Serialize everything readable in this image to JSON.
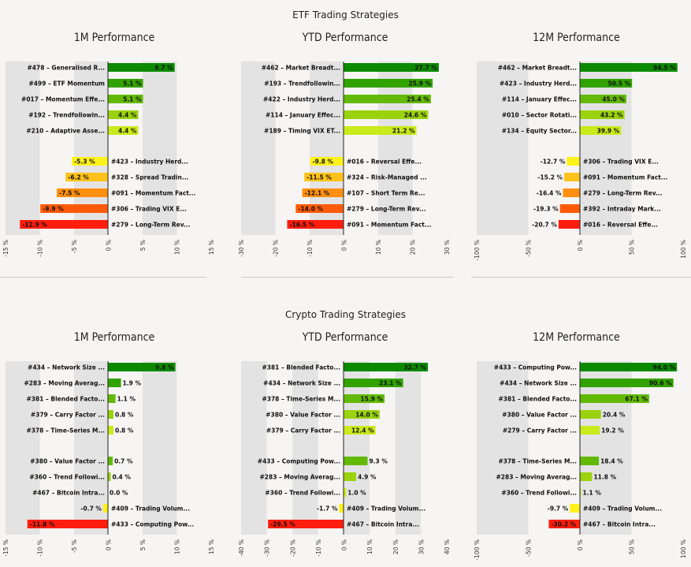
{
  "sections": [
    {
      "title": "ETF Trading Strategies"
    },
    {
      "title": "Crypto Trading Strategies"
    }
  ],
  "colors": {
    "pos": [
      "#0b8a00",
      "#31a200",
      "#62ba06",
      "#9ad30d",
      "#c9ea1b"
    ],
    "neg": [
      "#fff21c",
      "#ffc21a",
      "#ff8f0e",
      "#ff5a08",
      "#ff1d0e"
    ],
    "stripe_dark": "#e3e3e3",
    "stripe_light": "#f6f5f3",
    "axis": "#222222"
  },
  "chart_data": [
    {
      "type": "bar",
      "orientation": "horizontal",
      "section": "ETF Trading Strategies",
      "title": "1M Performance",
      "xlim": [
        -15,
        15
      ],
      "xticks": [
        "-15 %",
        "-10 %",
        "-5 %",
        "0 %",
        "5 %",
        "10 %",
        "15 %"
      ],
      "top": [
        {
          "label": "#478 – Generalised R...",
          "value": 9.7,
          "value_label": "9.7 %"
        },
        {
          "label": "#499 – ETF Momentum",
          "value": 5.1,
          "value_label": "5.1 %"
        },
        {
          "label": "#017 – Momentum Effe...",
          "value": 5.1,
          "value_label": "5.1 %"
        },
        {
          "label": "#192 – Trendfollowin...",
          "value": 4.4,
          "value_label": "4.4 %"
        },
        {
          "label": "#210 – Adaptive Asse...",
          "value": 4.4,
          "value_label": "4.4 %"
        }
      ],
      "bottom": [
        {
          "label": "#423 – Industry Herd...",
          "value": -5.3,
          "value_label": "-5.3 %"
        },
        {
          "label": "#328 – Spread Tradin...",
          "value": -6.2,
          "value_label": "-6.2 %"
        },
        {
          "label": "#091 – Momentum Fact...",
          "value": -7.5,
          "value_label": "-7.5 %"
        },
        {
          "label": "#306 – Trading VIX E...",
          "value": -9.9,
          "value_label": "-9.9 %"
        },
        {
          "label": "#279 – Long-Term Rev...",
          "value": -12.9,
          "value_label": "-12.9 %"
        }
      ]
    },
    {
      "type": "bar",
      "orientation": "horizontal",
      "section": "ETF Trading Strategies",
      "title": "YTD Performance",
      "xlim": [
        -30,
        30
      ],
      "xticks": [
        "-30 %",
        "-20 %",
        "-10 %",
        "0 %",
        "10 %",
        "20 %",
        "30 %"
      ],
      "top": [
        {
          "label": "#462 – Market Breadt...",
          "value": 27.7,
          "value_label": "27.7 %"
        },
        {
          "label": "#193 – Trendfollowin...",
          "value": 25.9,
          "value_label": "25.9 %"
        },
        {
          "label": "#422 – Industry Herd...",
          "value": 25.4,
          "value_label": "25.4 %"
        },
        {
          "label": "#114 – January Effec...",
          "value": 24.6,
          "value_label": "24.6 %"
        },
        {
          "label": "#189 – Timing VIX ET...",
          "value": 21.2,
          "value_label": "21.2 %"
        }
      ],
      "bottom": [
        {
          "label": "#016 – Reversal Effe...",
          "value": -9.8,
          "value_label": "-9.8 %"
        },
        {
          "label": "#324 – Risk-Managed ...",
          "value": -11.5,
          "value_label": "-11.5 %"
        },
        {
          "label": "#107 – Short Term Re...",
          "value": -12.1,
          "value_label": "-12.1 %"
        },
        {
          "label": "#279 – Long-Term Rev...",
          "value": -14.0,
          "value_label": "-14.0 %"
        },
        {
          "label": "#091 – Momentum Fact...",
          "value": -16.5,
          "value_label": "-16.5 %"
        }
      ]
    },
    {
      "type": "bar",
      "orientation": "horizontal",
      "section": "ETF Trading Strategies",
      "title": "12M Performance",
      "xlim": [
        -100,
        100
      ],
      "xticks": [
        "-100 %",
        "-50 %",
        "0 %",
        "50 %",
        "100 %"
      ],
      "top": [
        {
          "label": "#462 – Market Breadt...",
          "value": 94.5,
          "value_label": "94.5 %"
        },
        {
          "label": "#423 – Industry Herd...",
          "value": 50.5,
          "value_label": "50.5 %"
        },
        {
          "label": "#114 – January Effec...",
          "value": 45.0,
          "value_label": "45.0 %"
        },
        {
          "label": "#010 – Sector Rotati...",
          "value": 43.2,
          "value_label": "43.2 %"
        },
        {
          "label": "#134 – Equity Sector...",
          "value": 39.9,
          "value_label": "39.9 %"
        }
      ],
      "bottom": [
        {
          "label": "#306 – Trading VIX E...",
          "value": -12.7,
          "value_label": "-12.7 %"
        },
        {
          "label": "#091 – Momentum Fact...",
          "value": -15.2,
          "value_label": "-15.2 %"
        },
        {
          "label": "#279 – Long-Term Rev...",
          "value": -16.4,
          "value_label": "-16.4 %"
        },
        {
          "label": "#392 – Intraday Mark...",
          "value": -19.3,
          "value_label": "-19.3 %"
        },
        {
          "label": "#016 – Reversal Effe...",
          "value": -20.7,
          "value_label": "-20.7 %"
        }
      ]
    },
    {
      "type": "bar",
      "orientation": "horizontal",
      "section": "Crypto Trading Strategies",
      "title": "1M Performance",
      "xlim": [
        -15,
        15
      ],
      "xticks": [
        "-15 %",
        "-10 %",
        "-5 %",
        "0 %",
        "5 %",
        "10 %",
        "15 %"
      ],
      "top": [
        {
          "label": "#434 – Network Size ...",
          "value": 9.8,
          "value_label": "9.8 %"
        },
        {
          "label": "#283 – Moving Averag...",
          "value": 1.9,
          "value_label": "1.9 %"
        },
        {
          "label": "#381 – Blended Facto...",
          "value": 1.1,
          "value_label": "1.1 %"
        },
        {
          "label": "#379 – Carry Factor ...",
          "value": 0.8,
          "value_label": "0.8 %"
        },
        {
          "label": "#378 – Time-Series M...",
          "value": 0.8,
          "value_label": "0.8 %"
        }
      ],
      "bottom": [
        {
          "label": "#380 – Value Factor ...",
          "value": 0.7,
          "value_label": "0.7 %"
        },
        {
          "label": "#360 – Trend Followi...",
          "value": 0.4,
          "value_label": "0.4 %"
        },
        {
          "label": "#467 – Bitcoin Intra...",
          "value": 0.0,
          "value_label": "0.0 %"
        },
        {
          "label": "#409 – Trading Volum...",
          "value": -0.7,
          "value_label": "-0.7 %"
        },
        {
          "label": "#433 – Computing Pow...",
          "value": -11.8,
          "value_label": "-11.8 %"
        }
      ]
    },
    {
      "type": "bar",
      "orientation": "horizontal",
      "section": "Crypto Trading Strategies",
      "title": "YTD Performance",
      "xlim": [
        -40,
        40
      ],
      "xticks": [
        "-40 %",
        "-30 %",
        "-20 %",
        "-10 %",
        "0 %",
        "10 %",
        "20 %",
        "30 %",
        "40 %"
      ],
      "top": [
        {
          "label": "#381 – Blended Facto...",
          "value": 32.7,
          "value_label": "32.7 %"
        },
        {
          "label": "#434 – Network Size ...",
          "value": 23.1,
          "value_label": "23.1 %"
        },
        {
          "label": "#378 – Time-Series M...",
          "value": 15.9,
          "value_label": "15.9 %"
        },
        {
          "label": "#380 – Value Factor ...",
          "value": 14.0,
          "value_label": "14.0 %"
        },
        {
          "label": "#379 – Carry Factor ...",
          "value": 12.4,
          "value_label": "12.4 %"
        }
      ],
      "bottom": [
        {
          "label": "#433 – Computing Pow...",
          "value": 9.3,
          "value_label": "9.3 %"
        },
        {
          "label": "#283 – Moving Averag...",
          "value": 4.9,
          "value_label": "4.9 %"
        },
        {
          "label": "#360 – Trend Followi...",
          "value": 1.0,
          "value_label": "1.0 %"
        },
        {
          "label": "#409 – Trading Volum...",
          "value": -1.7,
          "value_label": "-1.7 %"
        },
        {
          "label": "#467 – Bitcoin Intra...",
          "value": -29.5,
          "value_label": "-29.5 %"
        }
      ]
    },
    {
      "type": "bar",
      "orientation": "horizontal",
      "section": "Crypto Trading Strategies",
      "title": "12M Performance",
      "xlim": [
        -100,
        100
      ],
      "xticks": [
        "-100 %",
        "-50 %",
        "0 %",
        "50 %",
        "100 %"
      ],
      "top": [
        {
          "label": "#433 – Computing Pow...",
          "value": 94.0,
          "value_label": "94.0 %"
        },
        {
          "label": "#434 – Network Size ...",
          "value": 90.6,
          "value_label": "90.6 %"
        },
        {
          "label": "#381 – Blended Facto...",
          "value": 67.1,
          "value_label": "67.1 %"
        },
        {
          "label": "#380 – Value Factor ...",
          "value": 20.4,
          "value_label": "20.4 %"
        },
        {
          "label": "#279 – Carry Factor ...",
          "value": 19.2,
          "value_label": "19.2 %"
        }
      ],
      "bottom": [
        {
          "label": "#378 – Time-Series M...",
          "value": 18.4,
          "value_label": "18.4 %"
        },
        {
          "label": "#283 – Moving Averag...",
          "value": 11.8,
          "value_label": "11.8 %"
        },
        {
          "label": "#360 – Trend Followi...",
          "value": 1.1,
          "value_label": "1.1 %"
        },
        {
          "label": "#409 – Trading Volum...",
          "value": -9.7,
          "value_label": "-9.7 %"
        },
        {
          "label": "#467 – Bitcoin Intra...",
          "value": -30.2,
          "value_label": "-30.2 %"
        }
      ]
    }
  ]
}
